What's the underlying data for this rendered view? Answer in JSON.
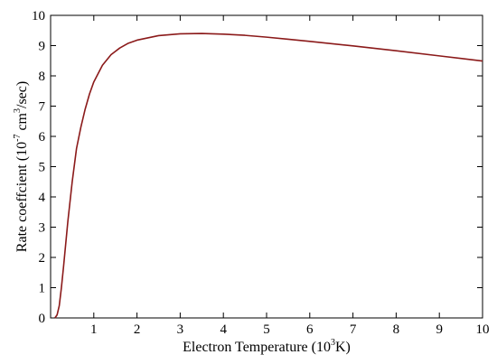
{
  "chart_data": {
    "type": "line",
    "title": "",
    "xlabel": {
      "main": "Electron Temperature (10",
      "sup": "3",
      "end": "K)"
    },
    "ylabel": {
      "main": "Rate coeffcient (10",
      "sup1": "-7",
      "mid": " cm",
      "sup2": "3",
      "end": "/sec)"
    },
    "xlim": [
      0,
      10
    ],
    "ylim": [
      0,
      10
    ],
    "xticks": [
      1,
      2,
      3,
      4,
      5,
      6,
      7,
      8,
      9,
      10
    ],
    "yticks": [
      0,
      1,
      2,
      3,
      4,
      5,
      6,
      7,
      8,
      9,
      10
    ],
    "grid": false,
    "line_color": "#8b1a1a",
    "series": [
      {
        "name": "",
        "x": [
          0.1,
          0.15,
          0.2,
          0.25,
          0.3,
          0.4,
          0.5,
          0.6,
          0.7,
          0.8,
          0.9,
          1.0,
          1.2,
          1.4,
          1.6,
          1.8,
          2.0,
          2.5,
          3.0,
          3.5,
          4.0,
          4.5,
          5.0,
          5.5,
          6.0,
          7.0,
          8.0,
          9.0,
          10.0
        ],
        "y": [
          0.0,
          0.1,
          0.4,
          1.0,
          1.7,
          3.2,
          4.5,
          5.6,
          6.3,
          6.9,
          7.4,
          7.8,
          8.35,
          8.7,
          8.92,
          9.08,
          9.18,
          9.33,
          9.39,
          9.4,
          9.38,
          9.34,
          9.28,
          9.21,
          9.14,
          8.99,
          8.83,
          8.66,
          8.49
        ]
      }
    ]
  }
}
